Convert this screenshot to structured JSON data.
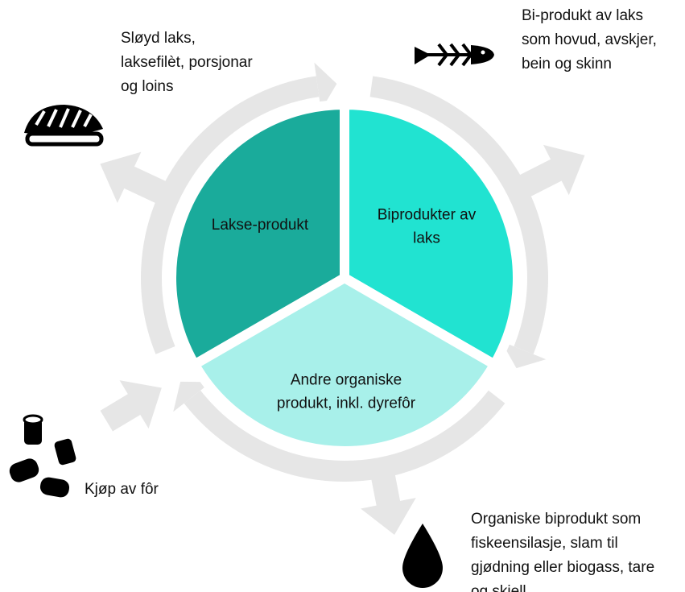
{
  "sectors": [
    {
      "lines": [
        "Lakse-produkt"
      ]
    },
    {
      "lines": [
        "Biprodukter av",
        "laks"
      ]
    },
    {
      "lines": [
        "Andre organiske",
        "produkt, inkl. dyrefôr"
      ]
    }
  ],
  "notes": {
    "salmon": {
      "lines": [
        "Sløyd laks,",
        "laksefilèt, porsjonar",
        "og loins"
      ]
    },
    "byproduct": {
      "lines": [
        "Bi-produkt av laks",
        "som hovud, avskjer,",
        "bein og skinn"
      ]
    },
    "feed": {
      "lines": [
        "Kjøp av fôr"
      ]
    },
    "organic": {
      "lines": [
        "Organiske biprodukt som",
        "fiskeensilasje, slam til",
        "gjødning eller biogass, tare",
        "og skjell"
      ]
    }
  }
}
